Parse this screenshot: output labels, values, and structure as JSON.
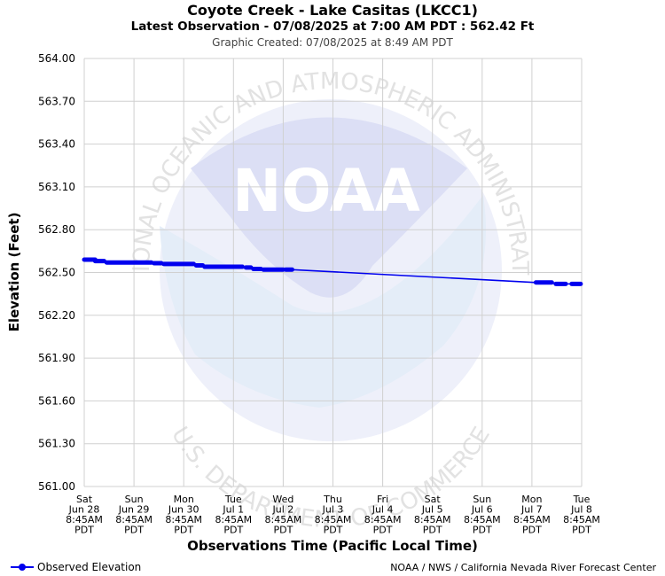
{
  "title": "Coyote Creek - Lake Casitas (LKCC1)",
  "subtitle": "Latest Observation - 07/08/2025 at 7:00 AM PDT : 562.42 Ft",
  "created": "Graphic Created: 07/08/2025 at 8:49 AM PDT",
  "credit": "NOAA / NWS / California Nevada River Forecast Center",
  "watermark": {
    "logo_text": "NOAA",
    "arc_top": "NATIONAL OCEANIC AND ATMOSPHERIC ADMINISTRATION",
    "arc_bottom": "U.S. DEPARTMENT OF COMMERCE"
  },
  "colors": {
    "series": "#0000ee",
    "grid": "#d0d0d0",
    "watermark": "#e8e8f8"
  },
  "chart_data": {
    "type": "line",
    "xlabel": "Observations Time (Pacific Local Time)",
    "ylabel": "Elevation (Feet)",
    "ylim": [
      561.0,
      564.0
    ],
    "xlim": [
      0,
      10
    ],
    "grid": true,
    "legend_position": "bottom-left",
    "y_ticks": [
      "564.00",
      "563.70",
      "563.40",
      "563.10",
      "562.80",
      "562.50",
      "562.20",
      "561.90",
      "561.60",
      "561.30",
      "561.00"
    ],
    "x_ticks": [
      [
        "Sat",
        "Jun 28",
        "8:45AM",
        "PDT"
      ],
      [
        "Sun",
        "Jun 29",
        "8:45AM",
        "PDT"
      ],
      [
        "Mon",
        "Jun 30",
        "8:45AM",
        "PDT"
      ],
      [
        "Tue",
        "Jul 1",
        "8:45AM",
        "PDT"
      ],
      [
        "Wed",
        "Jul 2",
        "8:45AM",
        "PDT"
      ],
      [
        "Thu",
        "Jul 3",
        "8:45AM",
        "PDT"
      ],
      [
        "Fri",
        "Jul 4",
        "8:45AM",
        "PDT"
      ],
      [
        "Sat",
        "Jul 5",
        "8:45AM",
        "PDT"
      ],
      [
        "Sun",
        "Jul 6",
        "8:45AM",
        "PDT"
      ],
      [
        "Mon",
        "Jul 7",
        "8:45AM",
        "PDT"
      ],
      [
        "Tue",
        "Jul 8",
        "8:45AM",
        "PDT"
      ]
    ],
    "series": [
      {
        "name": "Observed Elevation",
        "segments": [
          {
            "x_start": 0.0,
            "x_end": 0.22,
            "y": 562.59
          },
          {
            "x_start": 0.22,
            "x_end": 0.4,
            "y": 562.58
          },
          {
            "x_start": 0.45,
            "x_end": 1.35,
            "y": 562.57
          },
          {
            "x_start": 1.4,
            "x_end": 1.55,
            "y": 562.565
          },
          {
            "x_start": 1.6,
            "x_end": 2.2,
            "y": 562.56
          },
          {
            "x_start": 2.25,
            "x_end": 2.38,
            "y": 562.55
          },
          {
            "x_start": 2.42,
            "x_end": 3.18,
            "y": 562.54
          },
          {
            "x_start": 3.25,
            "x_end": 3.35,
            "y": 562.535
          },
          {
            "x_start": 3.4,
            "x_end": 3.55,
            "y": 562.525
          },
          {
            "x_start": 3.6,
            "x_end": 4.0,
            "y": 562.52
          },
          {
            "x_start": 4.05,
            "x_end": 4.18,
            "y": 562.52
          },
          {
            "x_start": 9.08,
            "x_end": 9.4,
            "y": 562.43
          },
          {
            "x_start": 9.48,
            "x_end": 9.68,
            "y": 562.42
          },
          {
            "x_start": 9.8,
            "x_end": 9.98,
            "y": 562.42
          }
        ]
      }
    ]
  }
}
